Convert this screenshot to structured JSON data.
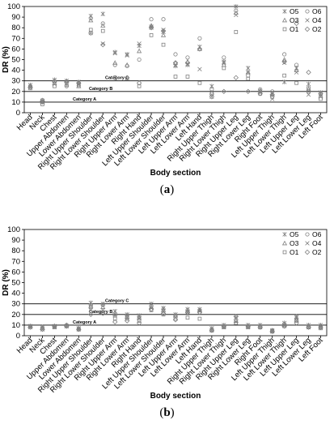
{
  "chart_data": [
    {
      "type": "scatter",
      "panel_label": "a",
      "xlabel": "Body section",
      "ylabel": "DR (%)",
      "ylim": [
        0,
        100
      ],
      "yticks": [
        0,
        10,
        20,
        30,
        40,
        50,
        60,
        70,
        80,
        90,
        100
      ],
      "grid": false,
      "legend_position": "top-right",
      "categories": [
        "Head",
        "Neck",
        "Chest",
        "Upper Abdomen",
        "Lower Abdomen",
        "Right Upper Shoulder",
        "Right Lower Shoulder",
        "Right Upper Arm",
        "Right Lower Arm",
        "Right Hand",
        "Left Upper Shoulder",
        "Left Lower Shoulder",
        "Left Upper Arm",
        "Left Lower Arm",
        "Left Hand",
        "Right Upper Thigh",
        "Right Lower Thigh",
        "Right Upper Leg",
        "Right Lower Leg",
        "Right Foot",
        "Left Upper Thigh",
        "Left Lower Thigh",
        "Left Upper Leg",
        "Left Lower Leg",
        "Left Foot"
      ],
      "reference_lines": [
        {
          "label": "Category A",
          "y": 10
        },
        {
          "label": "Category B",
          "y": 20
        },
        {
          "label": "Category C",
          "y": 30
        }
      ],
      "series": [
        {
          "name": "O5",
          "marker": "star",
          "values": [
            26,
            10,
            31,
            27,
            29,
            91,
            93,
            57,
            55,
            63,
            81,
            76,
            44,
            45,
            62,
            25,
            48,
            100,
            42,
            20,
            18,
            29,
            42,
            27,
            19
          ]
        },
        {
          "name": "O6",
          "marker": "circle",
          "values": [
            25,
            12,
            30,
            25,
            28,
            89,
            84,
            45,
            44,
            50,
            88,
            88,
            55,
            52,
            70,
            22,
            52,
            96,
            35,
            22,
            20,
            55,
            45,
            20,
            18
          ]
        },
        {
          "name": "O3",
          "marker": "triangle",
          "values": [
            25,
            10,
            28,
            30,
            25,
            87,
            82,
            47,
            45,
            58,
            82,
            73,
            47,
            48,
            60,
            19,
            45,
            94,
            38,
            21,
            17,
            50,
            40,
            22,
            16
          ]
        },
        {
          "name": "O4",
          "marker": "x",
          "values": [
            24,
            11,
            27,
            30,
            27,
            75,
            65,
            56,
            54,
            65,
            80,
            78,
            45,
            46,
            41,
            15,
            47,
            92,
            38,
            19,
            13,
            47,
            38,
            17,
            15
          ]
        },
        {
          "name": "O1",
          "marker": "square",
          "values": [
            23,
            8,
            25,
            26,
            26,
            78,
            77,
            33,
            32,
            25,
            73,
            64,
            34,
            34,
            28,
            18,
            42,
            76,
            32,
            18,
            15,
            35,
            28,
            23,
            13
          ]
        },
        {
          "name": "O2",
          "marker": "diamond",
          "values": [
            24,
            11,
            29,
            29,
            28,
            75,
            64,
            33,
            33,
            28,
            80,
            77,
            47,
            47,
            60,
            15,
            20,
            33,
            20,
            18,
            17,
            48,
            84,
            38,
            18
          ]
        }
      ]
    },
    {
      "type": "scatter",
      "panel_label": "b",
      "xlabel": "Body section",
      "ylabel": "DR (%)",
      "ylim": [
        0,
        100
      ],
      "yticks": [
        0,
        10,
        20,
        30,
        40,
        50,
        60,
        70,
        80,
        90,
        100
      ],
      "grid": false,
      "legend_position": "top-right",
      "categories": [
        "Head",
        "Neck",
        "Chest",
        "Upper Abdomen",
        "Lower Abdomen",
        "Right Upper Shoulder",
        "Right Lower Shoulder",
        "Right Upper Arm",
        "Right Lower Arm",
        "Right Hand",
        "Left Upper Shoulder",
        "Left Lower Shoulder",
        "Left Upper Arm",
        "Left Lower Arm",
        "Left Hand",
        "Right Upper Thigh",
        "Right Lower Thigh",
        "Right Upper Leg",
        "Right Lower Leg",
        "Right Foot",
        "Left Upper Thigh",
        "Left Lower Thigh",
        "Left Upper Leg",
        "Left Lower Leg",
        "Left Foot"
      ],
      "reference_lines": [
        {
          "label": "Category A",
          "y": 10
        },
        {
          "label": "Category B",
          "y": 20
        },
        {
          "label": "Category C",
          "y": 30
        }
      ],
      "series": [
        {
          "name": "O5",
          "marker": "star",
          "values": [
            9,
            8,
            9,
            9,
            7,
            31,
            30,
            23,
            20,
            19,
            30,
            26,
            20,
            25,
            25,
            7,
            10,
            17,
            10,
            10,
            5,
            12,
            18,
            10,
            10
          ]
        },
        {
          "name": "O6",
          "marker": "circle",
          "values": [
            9,
            7,
            9,
            10,
            6,
            29,
            29,
            21,
            19,
            18,
            28,
            25,
            19,
            24,
            24,
            6,
            9,
            15,
            9,
            9,
            5,
            11,
            16,
            9,
            9
          ]
        },
        {
          "name": "O3",
          "marker": "triangle",
          "values": [
            9,
            7,
            9,
            10,
            7,
            28,
            27,
            20,
            18,
            17,
            27,
            24,
            19,
            23,
            24,
            6,
            9,
            14,
            9,
            9,
            5,
            10,
            15,
            9,
            8
          ]
        },
        {
          "name": "O4",
          "marker": "x",
          "values": [
            8,
            6,
            8,
            9,
            6,
            24,
            24,
            19,
            17,
            16,
            26,
            23,
            17,
            22,
            23,
            5,
            8,
            13,
            8,
            8,
            4,
            10,
            17,
            8,
            8
          ]
        },
        {
          "name": "O1",
          "marker": "square",
          "values": [
            9,
            7,
            8,
            9,
            6,
            27,
            22,
            16,
            16,
            14,
            24,
            20,
            16,
            17,
            16,
            5,
            8,
            12,
            8,
            8,
            4,
            9,
            14,
            8,
            7
          ]
        },
        {
          "name": "O2",
          "marker": "diamond",
          "values": [
            8,
            6,
            9,
            9,
            6,
            20,
            21,
            13,
            14,
            12,
            25,
            21,
            15,
            22,
            22,
            5,
            9,
            18,
            9,
            8,
            4,
            9,
            12,
            8,
            8
          ]
        }
      ]
    }
  ]
}
